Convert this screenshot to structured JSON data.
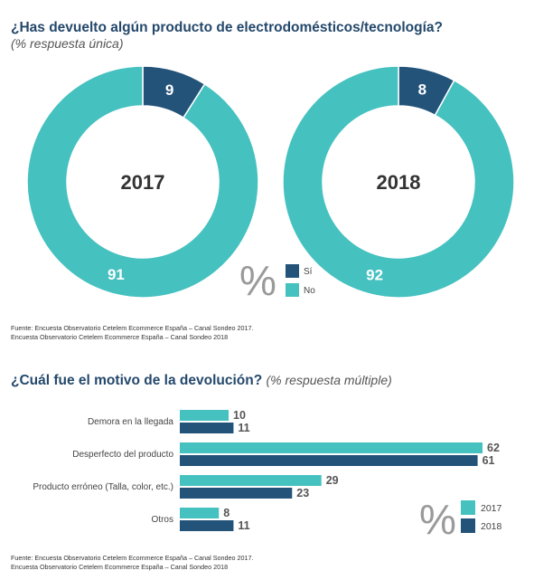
{
  "section1": {
    "title": "¿Has devuelto algún producto de electrodomésticos/tecnología?",
    "subtitle": "(% respuesta única)",
    "source_line1": "Fuente: Encuesta Observatorio Cetelem Ecommerce España – Canal Sondeo 2017.",
    "source_line2": "Encuesta Observatorio Cetelem Ecommerce España – Canal Sondeo 2018"
  },
  "section2": {
    "title": "¿Cuál fue el motivo de la devolución?",
    "title_suffix": "(% respuesta múltiple)",
    "source_line1": "Fuente: Encuesta Observatorio Cetelem Ecommerce España – Canal Sondeo 2017.",
    "source_line2": "Encuesta Observatorio Cetelem Ecommerce España – Canal Sondeo 2018"
  },
  "colors": {
    "teal": "#45c1c0",
    "navy": "#24537a",
    "title": "#24486b"
  },
  "chart_data": [
    {
      "type": "pie",
      "variant": "donut",
      "center_label": "2017",
      "labels": [
        "Sí",
        "No"
      ],
      "values": [
        9,
        91
      ],
      "unit_symbol": "%"
    },
    {
      "type": "pie",
      "variant": "donut",
      "center_label": "2018",
      "labels": [
        "Sí",
        "No"
      ],
      "values": [
        8,
        92
      ],
      "unit_symbol": "%"
    },
    {
      "type": "bar",
      "orientation": "horizontal",
      "categories": [
        "Demora en la llegada",
        "Desperfecto del producto",
        "Producto erróneo (Talla, color, etc.)",
        "Otros"
      ],
      "series": [
        {
          "name": "2017",
          "values": [
            10,
            62,
            29,
            8
          ]
        },
        {
          "name": "2018",
          "values": [
            11,
            61,
            23,
            11
          ]
        }
      ],
      "unit_symbol": "%",
      "xlim": [
        0,
        62
      ]
    }
  ]
}
